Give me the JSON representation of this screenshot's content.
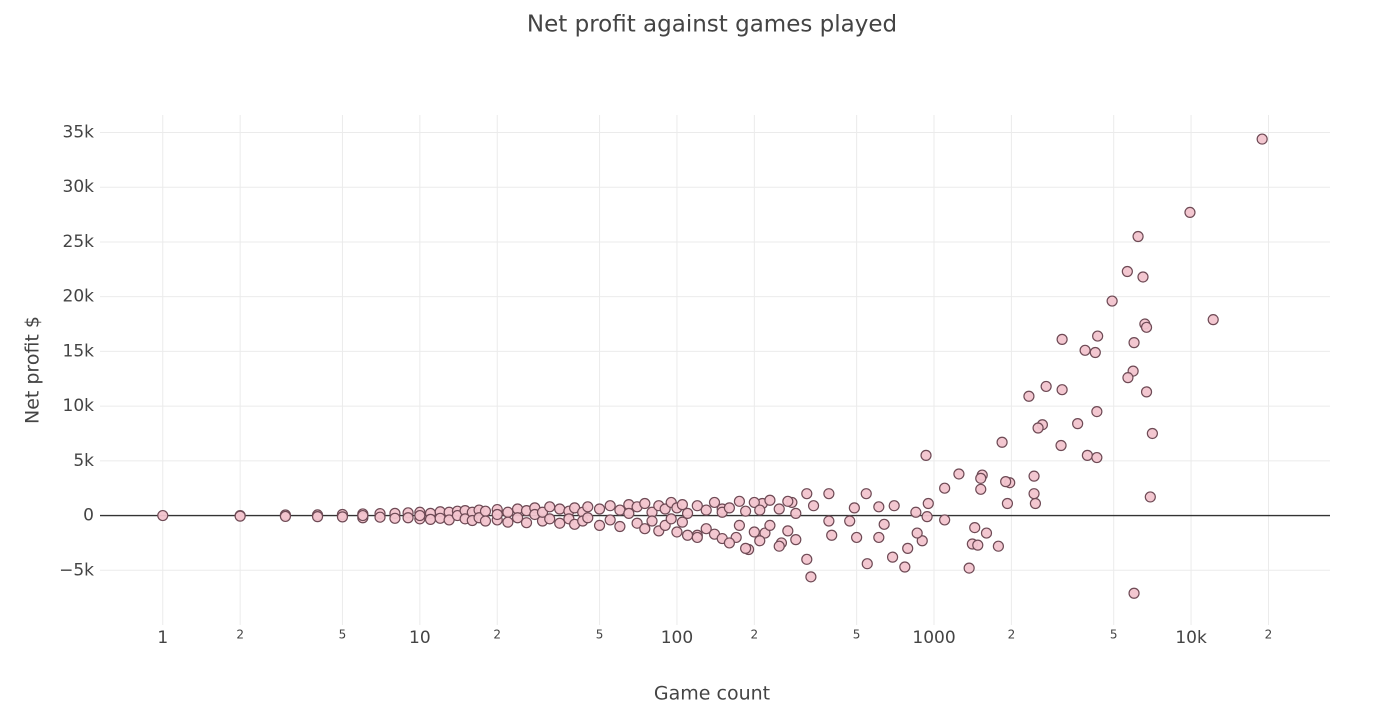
{
  "chart_data": {
    "type": "scatter",
    "title": "Net profit against games played",
    "x_label": "Game count",
    "y_label": "Net profit $",
    "xscale": "log",
    "grid": true,
    "zero_line": true,
    "color": "#f2c4ce",
    "edge_color": "#6e4a55",
    "xlim": [
      0.57,
      34700
    ],
    "ylim": [
      -10000,
      36600
    ],
    "xticks": [
      1,
      {
        "value": 2,
        "label": "2"
      },
      {
        "value": 5,
        "label": "5"
      },
      10,
      {
        "value": 20,
        "label": "2"
      },
      {
        "value": 50,
        "label": "5"
      },
      100,
      {
        "value": 200,
        "label": "2"
      },
      {
        "value": 500,
        "label": "5"
      },
      1000,
      {
        "value": 2000,
        "label": "2"
      },
      {
        "value": 5000,
        "label": "5"
      },
      {
        "value": 10000,
        "label": "10k"
      },
      {
        "value": 20000,
        "label": "2"
      }
    ],
    "yticks": [
      {
        "value": -5000,
        "label": "−5k"
      },
      0,
      {
        "value": 5000,
        "label": "5k"
      },
      {
        "value": 10000,
        "label": "10k"
      },
      {
        "value": 15000,
        "label": "15k"
      },
      {
        "value": 20000,
        "label": "20k"
      },
      {
        "value": 25000,
        "label": "25k"
      },
      {
        "value": 30000,
        "label": "30k"
      },
      {
        "value": 35000,
        "label": "35k"
      }
    ],
    "x": [
      18900,
      9900,
      6220,
      5650,
      6500,
      4930,
      12190,
      6610,
      6710,
      3150,
      4330,
      3870,
      4240,
      6000,
      5950,
      5680,
      2730,
      3150,
      2340,
      6710,
      3620,
      4300,
      2640,
      2540,
      7070,
      1840,
      3120,
      931,
      3950,
      4300,
      1250,
      1540,
      1520,
      2450,
      1970,
      1900,
      1100,
      1520,
      2450,
      2480,
      1930,
      6940,
      950,
      850,
      1100,
      940,
      1440,
      1600,
      1410,
      1480,
      1780,
      900,
      860,
      790,
      690,
      770,
      550,
      1370,
      6000,
      332,
      320,
      545,
      390,
      320,
      700,
      610,
      490,
      470,
      500,
      610,
      640,
      400,
      390,
      280,
      255,
      220,
      190,
      170,
      340,
      215,
      120,
      150,
      1,
      2,
      2,
      3,
      3,
      4,
      4,
      5,
      5,
      6,
      6,
      6,
      7,
      7,
      8,
      8,
      9,
      9,
      10,
      10,
      10,
      11,
      11,
      12,
      12,
      13,
      13,
      14,
      14,
      15,
      15,
      16,
      16,
      17,
      17,
      18,
      18,
      20,
      20,
      20,
      22,
      22,
      24,
      24,
      26,
      26,
      28,
      28,
      30,
      30,
      32,
      32,
      35,
      35,
      38,
      38,
      40,
      40,
      43,
      43,
      45,
      45,
      50,
      50,
      55,
      55,
      60,
      60,
      65,
      65,
      70,
      70,
      75,
      75,
      80,
      80,
      85,
      85,
      90,
      90,
      95,
      95,
      100,
      100,
      105,
      105,
      110,
      110,
      120,
      120,
      130,
      130,
      140,
      140,
      150,
      150,
      160,
      160,
      175,
      175,
      185,
      185,
      200,
      200,
      210,
      210,
      230,
      230,
      250,
      250,
      270,
      270,
      290,
      290
    ],
    "values": [
      34400,
      27700,
      25500,
      22300,
      21800,
      19600,
      17900,
      17500,
      17200,
      16100,
      16400,
      15100,
      14900,
      15800,
      13200,
      12600,
      11800,
      11500,
      10900,
      11300,
      8400,
      9500,
      8300,
      8000,
      7500,
      6700,
      6400,
      5500,
      5500,
      5300,
      3800,
      3700,
      3400,
      3600,
      3000,
      3100,
      2500,
      2400,
      2000,
      1100,
      1100,
      1700,
      1100,
      300,
      -400,
      -100,
      -1100,
      -1600,
      -2600,
      -2700,
      -2800,
      -2300,
      -1600,
      -3000,
      -3800,
      -4700,
      -4400,
      -4800,
      -7100,
      -5600,
      -4000,
      2000,
      2000,
      2000,
      900,
      800,
      700,
      -500,
      -2000,
      -2000,
      -800,
      -1800,
      -500,
      1200,
      -2500,
      -1600,
      -3100,
      -2000,
      900,
      1100,
      -1800,
      600,
      0,
      0,
      -50,
      50,
      -80,
      60,
      -100,
      100,
      -120,
      150,
      -200,
      0,
      180,
      -150,
      200,
      -250,
      250,
      -200,
      300,
      -300,
      0,
      200,
      -350,
      350,
      -250,
      300,
      -400,
      400,
      0,
      450,
      -300,
      300,
      -450,
      500,
      -200,
      400,
      -500,
      550,
      -400,
      100,
      300,
      -600,
      600,
      -200,
      450,
      -650,
      700,
      100,
      -500,
      300,
      800,
      -300,
      600,
      -700,
      400,
      -300,
      700,
      -800,
      300,
      -500,
      800,
      -200,
      600,
      -900,
      900,
      -400,
      500,
      -1000,
      1000,
      200,
      -700,
      800,
      1100,
      -1200,
      300,
      -500,
      900,
      -1400,
      -900,
      600,
      1200,
      -300,
      -1500,
      700,
      1000,
      -600,
      -1800,
      200,
      900,
      -2000,
      -1200,
      500,
      1200,
      -1700,
      -2100,
      300,
      700,
      -2500,
      1300,
      -900,
      -3000,
      400,
      1200,
      -1500,
      -2300,
      500,
      1400,
      -900,
      -2800,
      600,
      1300,
      -1400,
      -2200,
      200
    ]
  }
}
